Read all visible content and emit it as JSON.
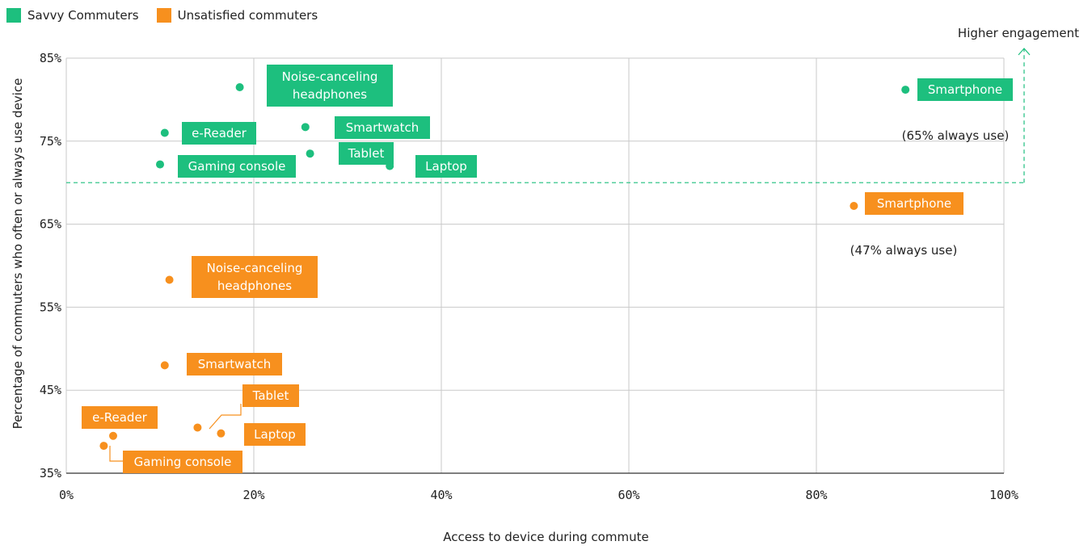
{
  "legend": {
    "savvy_label": "Savvy Commuters",
    "unsatisfied_label": "Unsatisfied commuters"
  },
  "colors": {
    "savvy": "#1dbf7e",
    "unsatisfied": "#f7901e"
  },
  "annotations": {
    "higher_engagement": "Higher engagement",
    "savvy_smartphone_note": "(65% always use)",
    "unsatisfied_smartphone_note": "(47% always use)"
  },
  "chart_data": {
    "type": "scatter",
    "xlabel": "Access to device during commute",
    "ylabel": "Percentage of commuters who often or always use device",
    "xlim": [
      0,
      100
    ],
    "ylim": [
      35,
      85
    ],
    "x_ticks": [
      "0%",
      "20%",
      "40%",
      "60%",
      "80%",
      "100%"
    ],
    "y_ticks": [
      "35%",
      "45%",
      "55%",
      "65%",
      "75%",
      "85%"
    ],
    "grid": true,
    "legend_position": "top-left",
    "threshold_y": 70,
    "series": [
      {
        "name": "Savvy Commuters",
        "points": [
          {
            "label": "Noise-canceling headphones",
            "x": 18.5,
            "y": 81.5
          },
          {
            "label": "e-Reader",
            "x": 10.5,
            "y": 76.0
          },
          {
            "label": "Smartwatch",
            "x": 25.5,
            "y": 76.7
          },
          {
            "label": "Tablet",
            "x": 26.0,
            "y": 73.5
          },
          {
            "label": "Gaming console",
            "x": 10.0,
            "y": 72.2
          },
          {
            "label": "Laptop",
            "x": 34.5,
            "y": 72.0
          },
          {
            "label": "Smartphone",
            "x": 89.5,
            "y": 81.2
          }
        ]
      },
      {
        "name": "Unsatisfied commuters",
        "points": [
          {
            "label": "Smartphone",
            "x": 84.0,
            "y": 67.2
          },
          {
            "label": "Noise-canceling headphones",
            "x": 11.0,
            "y": 58.3
          },
          {
            "label": "Smartwatch",
            "x": 10.5,
            "y": 48.0
          },
          {
            "label": "Tablet",
            "x": 14.0,
            "y": 40.5
          },
          {
            "label": "Laptop",
            "x": 16.5,
            "y": 39.8
          },
          {
            "label": "e-Reader",
            "x": 5.0,
            "y": 39.5
          },
          {
            "label": "Gaming console",
            "x": 4.0,
            "y": 38.3
          }
        ]
      }
    ]
  }
}
